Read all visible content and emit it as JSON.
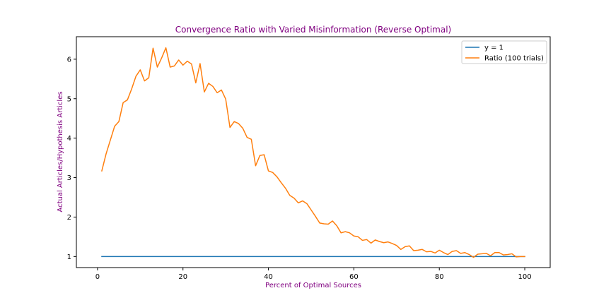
{
  "chart_data": {
    "type": "line",
    "title": "Convergence Ratio with Varied Misinformation (Reverse Optimal)",
    "xlabel": "Percent of Optimal Sources",
    "ylabel": "Actual Articles/Hypothesis Articles",
    "xlim": [
      -4.95,
      105.95
    ],
    "ylim": [
      0.72,
      6.57
    ],
    "xticks": [
      0,
      20,
      40,
      60,
      80,
      100
    ],
    "yticks": [
      1,
      2,
      3,
      4,
      5,
      6
    ],
    "grid": false,
    "legend_position": "top-right",
    "series": [
      {
        "name": "y = 1",
        "color": "#1f77b4",
        "x": [
          1,
          100
        ],
        "y": [
          1,
          1
        ]
      },
      {
        "name": "Ratio (100 trials)",
        "color": "#ff7f0e",
        "x": [
          1,
          2,
          3,
          4,
          5,
          6,
          7,
          8,
          9,
          10,
          11,
          12,
          13,
          14,
          15,
          16,
          17,
          18,
          19,
          20,
          21,
          22,
          23,
          24,
          25,
          26,
          27,
          28,
          29,
          30,
          31,
          32,
          33,
          34,
          35,
          36,
          37,
          38,
          39,
          40,
          41,
          42,
          43,
          44,
          45,
          46,
          47,
          48,
          49,
          50,
          51,
          52,
          53,
          54,
          55,
          56,
          57,
          58,
          59,
          60,
          61,
          62,
          63,
          64,
          65,
          66,
          67,
          68,
          69,
          70,
          71,
          72,
          73,
          74,
          75,
          76,
          77,
          78,
          79,
          80,
          81,
          82,
          83,
          84,
          85,
          86,
          87,
          88,
          89,
          90,
          91,
          92,
          93,
          94,
          95,
          96,
          97,
          98,
          99,
          100
        ],
        "y": [
          3.17,
          3.6,
          3.95,
          4.3,
          4.42,
          4.9,
          4.97,
          5.25,
          5.57,
          5.73,
          5.45,
          5.53,
          6.28,
          5.8,
          6.03,
          6.29,
          5.8,
          5.83,
          5.98,
          5.85,
          5.95,
          5.88,
          5.4,
          5.89,
          5.17,
          5.39,
          5.31,
          5.15,
          5.22,
          4.99,
          4.27,
          4.42,
          4.37,
          4.25,
          4.02,
          3.97,
          3.3,
          3.56,
          3.58,
          3.17,
          3.13,
          3.02,
          2.87,
          2.73,
          2.55,
          2.48,
          2.36,
          2.41,
          2.34,
          2.18,
          2.02,
          1.85,
          1.83,
          1.82,
          1.9,
          1.78,
          1.6,
          1.63,
          1.6,
          1.52,
          1.5,
          1.41,
          1.43,
          1.34,
          1.42,
          1.38,
          1.35,
          1.37,
          1.33,
          1.28,
          1.18,
          1.25,
          1.27,
          1.15,
          1.16,
          1.18,
          1.12,
          1.13,
          1.09,
          1.16,
          1.1,
          1.05,
          1.13,
          1.15,
          1.08,
          1.1,
          1.05,
          0.98,
          1.06,
          1.07,
          1.08,
          1.02,
          1.1,
          1.1,
          1.04,
          1.05,
          1.07,
          0.99,
          1.0,
          1.0
        ]
      }
    ]
  }
}
